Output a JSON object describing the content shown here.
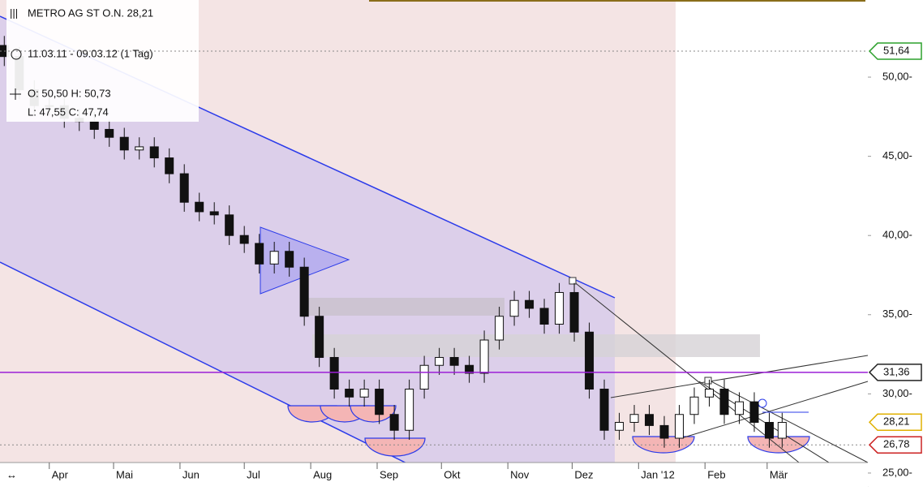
{
  "chart_data": {
    "type": "candlestick",
    "title": "METRO AG ST O.N. 28,21",
    "subtitle": "11.03.11 - 09.03.12 (1 Tag)",
    "ohlc_line1": "O: 50,50 H: 50,73",
    "ohlc_line2": "L:  47,55 C: 47,74",
    "x": [
      0,
      7,
      14,
      21,
      28,
      35,
      42,
      49,
      56,
      63,
      70,
      77,
      84,
      91,
      98,
      105,
      112,
      119,
      126,
      133,
      140,
      147,
      154,
      161,
      168,
      175,
      182,
      189,
      196,
      203,
      210,
      217,
      224,
      231,
      238,
      245,
      252,
      259,
      266,
      273,
      280,
      287,
      294,
      301,
      308,
      315,
      322,
      329,
      336,
      343,
      350,
      357,
      363
    ],
    "open": [
      52.0,
      51.3,
      49.2,
      48.2,
      48.2,
      47.4,
      47.2,
      46.7,
      46.2,
      45.4,
      45.6,
      44.9,
      43.9,
      42.1,
      41.5,
      41.3,
      40.0,
      39.5,
      38.2,
      39.0,
      38.0,
      34.9,
      32.3,
      30.3,
      29.8,
      30.3,
      28.7,
      27.7,
      30.3,
      31.8,
      32.3,
      31.8,
      31.3,
      33.4,
      34.9,
      35.9,
      35.4,
      34.4,
      36.4,
      33.9,
      30.3,
      27.7,
      28.2,
      28.7,
      28.0,
      27.2,
      28.7,
      29.8,
      30.3,
      28.7,
      29.5,
      28.2,
      27.2
    ],
    "high": [
      52.6,
      51.9,
      49.8,
      48.8,
      48.8,
      48.0,
      47.8,
      47.3,
      46.8,
      46.2,
      46.2,
      45.5,
      44.5,
      42.7,
      42.1,
      41.9,
      40.6,
      40.1,
      39.6,
      39.6,
      38.6,
      35.5,
      32.9,
      30.9,
      30.9,
      30.9,
      29.3,
      30.9,
      32.4,
      32.9,
      32.9,
      32.4,
      34.0,
      35.5,
      36.5,
      36.5,
      36.0,
      37.0,
      37.0,
      34.5,
      30.9,
      28.8,
      29.3,
      29.3,
      28.6,
      29.3,
      30.4,
      30.9,
      30.9,
      30.1,
      30.1,
      28.8,
      28.8
    ],
    "low": [
      50.7,
      48.6,
      47.6,
      47.6,
      46.8,
      46.6,
      46.1,
      45.6,
      44.8,
      44.8,
      44.3,
      43.3,
      41.5,
      40.9,
      40.7,
      39.4,
      38.9,
      37.6,
      37.6,
      37.4,
      34.3,
      31.7,
      29.7,
      29.2,
      29.2,
      28.1,
      27.1,
      27.1,
      29.7,
      31.2,
      31.2,
      30.7,
      30.7,
      32.8,
      34.3,
      34.8,
      33.8,
      33.8,
      33.3,
      29.7,
      27.1,
      27.1,
      27.6,
      27.4,
      26.6,
      26.6,
      28.1,
      29.2,
      28.1,
      28.1,
      27.6,
      26.6,
      26.6
    ],
    "close": [
      51.3,
      49.2,
      48.2,
      48.2,
      47.4,
      47.2,
      46.7,
      46.2,
      45.4,
      45.6,
      44.9,
      43.9,
      42.1,
      41.5,
      41.3,
      40.0,
      39.5,
      38.2,
      39.0,
      38.0,
      34.9,
      32.3,
      30.3,
      29.8,
      30.3,
      28.7,
      27.7,
      30.3,
      31.8,
      32.3,
      31.8,
      31.3,
      33.4,
      34.9,
      35.9,
      35.4,
      34.4,
      36.4,
      33.9,
      30.3,
      27.7,
      28.2,
      28.7,
      28.0,
      27.2,
      28.7,
      29.8,
      30.3,
      28.7,
      29.5,
      28.2,
      27.2,
      28.2
    ],
    "xlim": [
      -2,
      403
    ],
    "xticks": [
      {
        "value": 21,
        "label": "Apr"
      },
      {
        "value": 51,
        "label": "Mai"
      },
      {
        "value": 82,
        "label": "Jun"
      },
      {
        "value": 112,
        "label": "Jul"
      },
      {
        "value": 143,
        "label": "Aug"
      },
      {
        "value": 174,
        "label": "Sep"
      },
      {
        "value": 204,
        "label": "Okt"
      },
      {
        "value": 235,
        "label": "Nov"
      },
      {
        "value": 265,
        "label": "Dez"
      },
      {
        "value": 296,
        "label": "Jan '12"
      },
      {
        "value": 327,
        "label": "Feb"
      },
      {
        "value": 356,
        "label": "Mär"
      }
    ],
    "ylim": [
      23.87,
      54.87
    ],
    "yticks": [
      {
        "value": 25,
        "label": "25,00-"
      },
      {
        "value": 30,
        "label": "30,00-"
      },
      {
        "value": 35,
        "label": "35,00-"
      },
      {
        "value": 40,
        "label": "40,00-"
      },
      {
        "value": 45,
        "label": "45,00-"
      },
      {
        "value": 50,
        "label": "50,00-"
      }
    ],
    "price_markers": [
      {
        "value": 51.64,
        "label": "51,64",
        "color": "#2ca02c",
        "line": "dotted"
      },
      {
        "value": 31.36,
        "label": "31,36",
        "color": "#222222",
        "line": "solid"
      },
      {
        "value": 28.21,
        "label": "28,21",
        "color": "#e0b000",
        "line": "none"
      },
      {
        "value": 26.78,
        "label": "26,78",
        "color": "#cc2222",
        "line": "dotted"
      }
    ]
  }
}
